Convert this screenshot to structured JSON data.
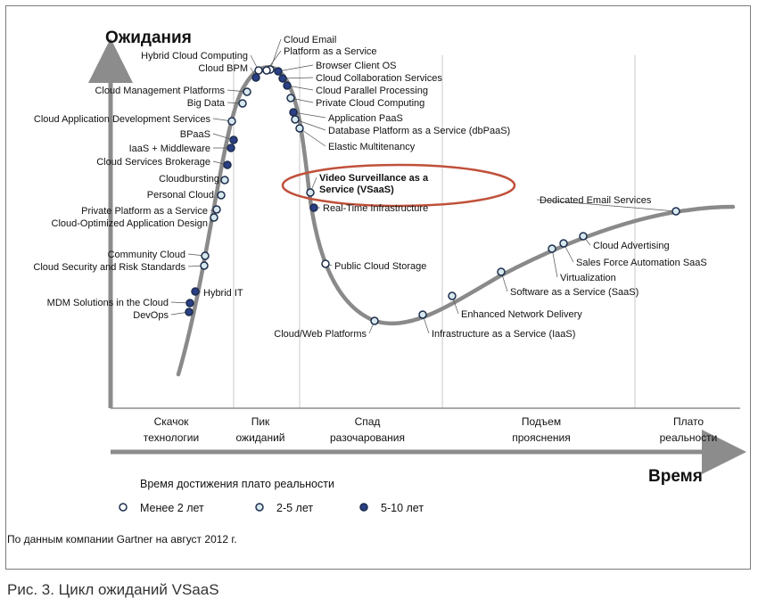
{
  "axes": {
    "y_title": "Ожидания",
    "x_title": "Время"
  },
  "phases": [
    {
      "line1": "Скачок",
      "line2": "технологии"
    },
    {
      "line1": "Пик",
      "line2": "ожиданий"
    },
    {
      "line1": "Спад",
      "line2": "разочарования"
    },
    {
      "line1": "Подъем",
      "line2": "прояснения"
    },
    {
      "line1": "Плато",
      "line2": "реальности"
    }
  ],
  "legend": {
    "title": "Время достижения плато реальности",
    "items": [
      {
        "label": "Менее 2 лет",
        "category": "lt2"
      },
      {
        "label": "2-5 лет",
        "category": "2to5"
      },
      {
        "label": "5-10 лет",
        "category": "5to10"
      }
    ]
  },
  "category_colors": {
    "lt2": "#ffffff",
    "2to5": "#d7e8ee",
    "5to10": "#2a3f86"
  },
  "highlight": {
    "technology": "Video Surveillance as a Service (VSaaS)",
    "color": "#c0503a"
  },
  "technologies": [
    {
      "label": "Cloud Email",
      "category": "lt2"
    },
    {
      "label": "Platform as a Service",
      "category": "lt2"
    },
    {
      "label": "Hybrid Cloud Computing",
      "category": "lt2"
    },
    {
      "label": "Cloud BPM",
      "category": "5to10"
    },
    {
      "label": "Browser Client OS",
      "category": "5to10"
    },
    {
      "label": "Cloud Collaboration Services",
      "category": "5to10"
    },
    {
      "label": "Cloud Management Platforms",
      "category": "2to5"
    },
    {
      "label": "Cloud Parallel Processing",
      "category": "5to10"
    },
    {
      "label": "Big Data",
      "category": "2to5"
    },
    {
      "label": "Private Cloud Computing",
      "category": "2to5"
    },
    {
      "label": "Cloud Application Development Services",
      "category": "2to5"
    },
    {
      "label": "Application PaaS",
      "category": "5to10"
    },
    {
      "label": "Database Platform as a Service (dbPaaS)",
      "category": "2to5"
    },
    {
      "label": "BPaaS",
      "category": "5to10"
    },
    {
      "label": "Elastic Multitenancy",
      "category": "2to5"
    },
    {
      "label": "IaaS + Middleware",
      "category": "5to10"
    },
    {
      "label": "Cloud Services Brokerage",
      "category": "5to10"
    },
    {
      "label": "Cloudbursting",
      "category": "2to5"
    },
    {
      "label": "Video Surveillance as a Service (VSaaS)",
      "category": "2to5"
    },
    {
      "label": "Personal Cloud",
      "category": "2to5"
    },
    {
      "label": "Real-Time Infrastructure",
      "category": "5to10"
    },
    {
      "label": "Private Platform as a Service",
      "category": "2to5"
    },
    {
      "label": "Cloud-Optimized Application Design",
      "category": "2to5"
    },
    {
      "label": "Dedicated Email Services",
      "category": "2to5"
    },
    {
      "label": "Cloud Advertising",
      "category": "2to5"
    },
    {
      "label": "Sales Force Automation SaaS",
      "category": "2to5"
    },
    {
      "label": "Community Cloud",
      "category": "2to5"
    },
    {
      "label": "Public Cloud Storage",
      "category": "lt2"
    },
    {
      "label": "Virtualization",
      "category": "2to5"
    },
    {
      "label": "Cloud Security and Risk Standards",
      "category": "2to5"
    },
    {
      "label": "Software as a Service (SaaS)",
      "category": "2to5"
    },
    {
      "label": "Hybrid IT",
      "category": "5to10"
    },
    {
      "label": "MDM Solutions in the Cloud",
      "category": "5to10"
    },
    {
      "label": "Enhanced Network Delivery",
      "category": "2to5"
    },
    {
      "label": "DevOps",
      "category": "5to10"
    },
    {
      "label": "Cloud/Web Platforms",
      "category": "2to5"
    },
    {
      "label": "Infrastructure as a Service (IaaS)",
      "category": "2to5"
    }
  ],
  "source_note": "По данным компании Gartner на август 2012 г.",
  "caption": "Рис. 3. Цикл ожиданий VSaaS"
}
